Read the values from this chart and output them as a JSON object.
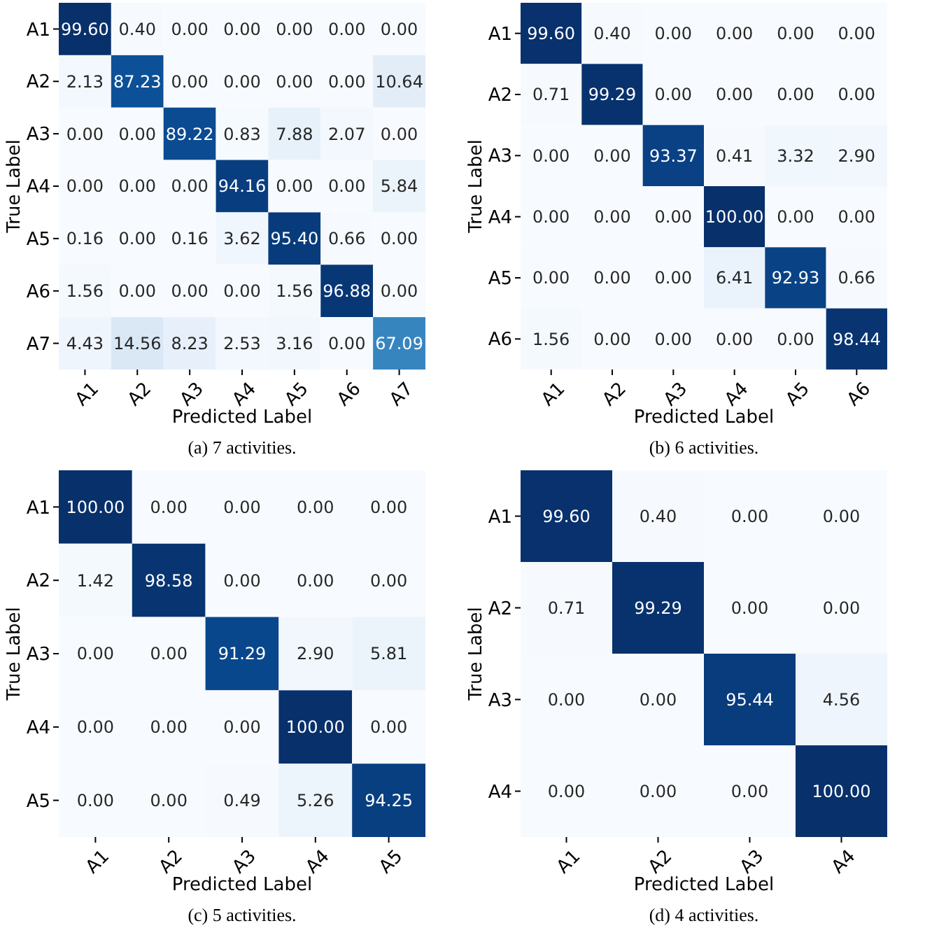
{
  "chart_data": [
    {
      "type": "heatmap",
      "title": "(a) 7 activities.",
      "xlabel": "Predicted Label",
      "ylabel": "True Label",
      "categories": [
        "A1",
        "A2",
        "A3",
        "A4",
        "A5",
        "A6",
        "A7"
      ],
      "y_categories": [
        "A1",
        "A2",
        "A3",
        "A4",
        "A5",
        "A6",
        "A7"
      ],
      "cells": [
        [
          99.6,
          0.4,
          0,
          0,
          0,
          0,
          0
        ],
        [
          2.13,
          87.23,
          0,
          0,
          0,
          0,
          10.64
        ],
        [
          0,
          0,
          89.22,
          0.83,
          7.88,
          2.07,
          0
        ],
        [
          0,
          0,
          0,
          94.16,
          0,
          0,
          5.84
        ],
        [
          0.16,
          0,
          0.16,
          3.62,
          95.4,
          0.66,
          0
        ],
        [
          1.56,
          0,
          0,
          0,
          1.56,
          96.88,
          0
        ],
        [
          4.43,
          14.56,
          8.23,
          2.53,
          3.16,
          0,
          67.09
        ]
      ],
      "cell_labels": [
        [
          "99.60",
          "0.40",
          "0.00",
          "0.00",
          "0.00",
          "0.00",
          "0.00"
        ],
        [
          "2.13",
          "87.23",
          "0.00",
          "0.00",
          "0.00",
          "0.00",
          "10.64"
        ],
        [
          "0.00",
          "0.00",
          "89.22",
          "0.83",
          "7.88",
          "2.07",
          "0.00"
        ],
        [
          "0.00",
          "0.00",
          "0.00",
          "94.16",
          "0.00",
          "0.00",
          "5.84"
        ],
        [
          "0.16",
          "0.00",
          "0.16",
          "3.62",
          "95.40",
          "0.66",
          "0.00"
        ],
        [
          "1.56",
          "0.00",
          "0.00",
          "0.00",
          "1.56",
          "96.88",
          "0.00"
        ],
        [
          "4.43",
          "14.56",
          "8.23",
          "2.53",
          "3.16",
          "0.00",
          "67.09"
        ]
      ]
    },
    {
      "type": "heatmap",
      "title": "(b) 6 activities.",
      "xlabel": "Predicted Label",
      "ylabel": "True Label",
      "categories": [
        "A1",
        "A2",
        "A3",
        "A4",
        "A5",
        "A6"
      ],
      "y_categories": [
        "A1",
        "A2",
        "A3",
        "A4",
        "A5",
        "A6"
      ],
      "cells": [
        [
          99.6,
          0.4,
          0,
          0,
          0,
          0
        ],
        [
          0.71,
          99.29,
          0,
          0,
          0,
          0
        ],
        [
          0,
          0,
          93.37,
          0.41,
          3.32,
          2.9
        ],
        [
          0,
          0,
          0,
          100,
          0,
          0
        ],
        [
          0,
          0,
          0,
          6.41,
          92.93,
          0.66
        ],
        [
          1.56,
          0,
          0,
          0,
          0,
          98.44
        ]
      ],
      "cell_labels": [
        [
          "99.60",
          "0.40",
          "0.00",
          "0.00",
          "0.00",
          "0.00"
        ],
        [
          "0.71",
          "99.29",
          "0.00",
          "0.00",
          "0.00",
          "0.00"
        ],
        [
          "0.00",
          "0.00",
          "93.37",
          "0.41",
          "3.32",
          "2.90"
        ],
        [
          "0.00",
          "0.00",
          "0.00",
          "100.00",
          "0.00",
          "0.00"
        ],
        [
          "0.00",
          "0.00",
          "0.00",
          "6.41",
          "92.93",
          "0.66"
        ],
        [
          "1.56",
          "0.00",
          "0.00",
          "0.00",
          "0.00",
          "98.44"
        ]
      ]
    },
    {
      "type": "heatmap",
      "title": "(c) 5 activities.",
      "xlabel": "Predicted Label",
      "ylabel": "True Label",
      "categories": [
        "A1",
        "A2",
        "A3",
        "A4",
        "A5"
      ],
      "y_categories": [
        "A1",
        "A2",
        "A3",
        "A4",
        "A5"
      ],
      "cells": [
        [
          100,
          0,
          0,
          0,
          0
        ],
        [
          1.42,
          98.58,
          0,
          0,
          0
        ],
        [
          0,
          0,
          91.29,
          2.9,
          5.81
        ],
        [
          0,
          0,
          0,
          100,
          0
        ],
        [
          0,
          0,
          0.49,
          5.26,
          94.25
        ]
      ],
      "cell_labels": [
        [
          "100.00",
          "0.00",
          "0.00",
          "0.00",
          "0.00"
        ],
        [
          "1.42",
          "98.58",
          "0.00",
          "0.00",
          "0.00"
        ],
        [
          "0.00",
          "0.00",
          "91.29",
          "2.90",
          "5.81"
        ],
        [
          "0.00",
          "0.00",
          "0.00",
          "100.00",
          "0.00"
        ],
        [
          "0.00",
          "0.00",
          "0.49",
          "5.26",
          "94.25"
        ]
      ]
    },
    {
      "type": "heatmap",
      "title": "(d) 4 activities.",
      "xlabel": "Predicted Label",
      "ylabel": "True Label",
      "categories": [
        "A1",
        "A2",
        "A3",
        "A4"
      ],
      "y_categories": [
        "A1",
        "A2",
        "A3",
        "A4"
      ],
      "cells": [
        [
          99.6,
          0.4,
          0,
          0
        ],
        [
          0.71,
          99.29,
          0,
          0
        ],
        [
          0,
          0,
          95.44,
          4.56
        ],
        [
          0,
          0,
          0,
          100
        ]
      ],
      "cell_labels": [
        [
          "99.60",
          "0.40",
          "0.00",
          "0.00"
        ],
        [
          "0.71",
          "99.29",
          "0.00",
          "0.00"
        ],
        [
          "0.00",
          "0.00",
          "95.44",
          "4.56"
        ],
        [
          "0.00",
          "0.00",
          "0.00",
          "100.00"
        ]
      ]
    }
  ]
}
